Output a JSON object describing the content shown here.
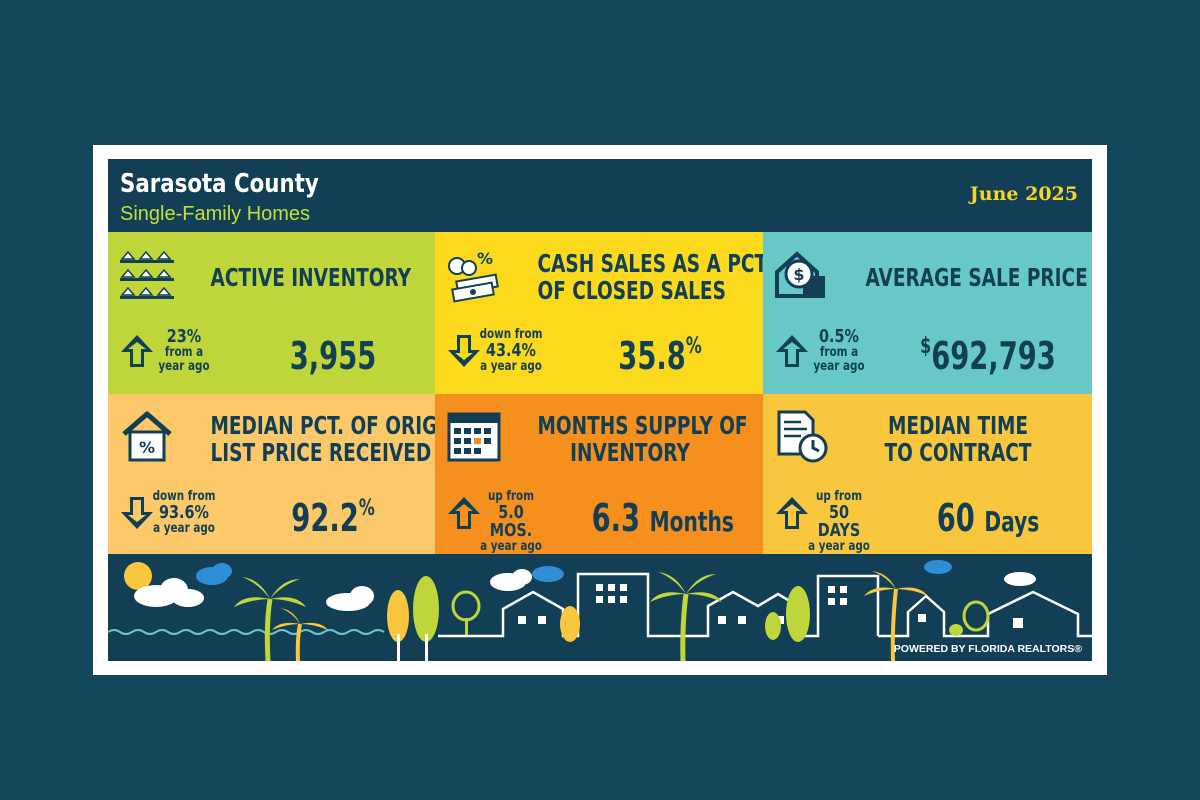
{
  "header": {
    "title": "Sarasota County",
    "subtitle": "Single-Family Homes",
    "date": "June 2025"
  },
  "tiles": [
    {
      "title_lines": [
        "ACTIVE INVENTORY"
      ],
      "change": {
        "direction": "up",
        "top": "",
        "big": "23%",
        "bottom1": "from a",
        "bottom2": "year ago"
      },
      "value": "3,955",
      "prefix": "",
      "suffix": "",
      "unit": "",
      "icon": "houses-grid-icon"
    },
    {
      "title_lines": [
        "CASH SALES AS A PCT.",
        "OF CLOSED SALES"
      ],
      "change": {
        "direction": "down",
        "top": "down from",
        "big": "43.4%",
        "bottom1": "a year ago",
        "bottom2": ""
      },
      "value": "35.8",
      "prefix": "",
      "suffix": "%",
      "unit": "",
      "icon": "cash-percent-icon"
    },
    {
      "title_lines": [
        "AVERAGE SALE PRICE"
      ],
      "change": {
        "direction": "up",
        "top": "",
        "big": "0.5%",
        "bottom1": "from a",
        "bottom2": "year ago"
      },
      "value": "692,793",
      "prefix": "$",
      "suffix": "",
      "unit": "",
      "icon": "house-dollar-icon"
    },
    {
      "title_lines": [
        "MEDIAN PCT. OF ORIG.",
        "LIST PRICE RECEIVED"
      ],
      "change": {
        "direction": "down",
        "top": "down from",
        "big": "93.6%",
        "bottom1": "a year ago",
        "bottom2": ""
      },
      "value": "92.2",
      "prefix": "",
      "suffix": "%",
      "unit": "",
      "icon": "house-percent-icon"
    },
    {
      "title_lines": [
        "MONTHS SUPPLY OF",
        "INVENTORY"
      ],
      "change": {
        "direction": "up",
        "top": "up from",
        "big": "5.0 MOS.",
        "bottom1": "a year ago",
        "bottom2": ""
      },
      "value": "6.3",
      "prefix": "",
      "suffix": "",
      "unit": "Months",
      "icon": "calendar-icon"
    },
    {
      "title_lines": [
        "MEDIAN TIME",
        "TO CONTRACT"
      ],
      "change": {
        "direction": "up",
        "top": "up from",
        "big": "50 DAYS",
        "bottom1": "a year ago",
        "bottom2": ""
      },
      "value": "60",
      "prefix": "",
      "suffix": "",
      "unit": "Days",
      "icon": "document-clock-icon"
    }
  ],
  "footer": {
    "powered_by": "POWERED BY FLORIDA REALTORS®"
  },
  "colors": {
    "background": "#14465a",
    "navy": "#123f55",
    "lime": "#bed63a",
    "yellow": "#fbd91c",
    "teal": "#67c8c6",
    "peach": "#fbc86a",
    "orange": "#f58f1e",
    "gold": "#f8c73e",
    "date_yellow": "#f5d52a"
  }
}
